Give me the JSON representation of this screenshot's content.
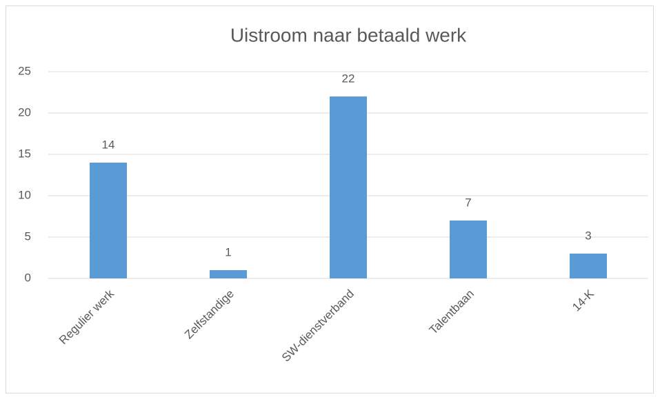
{
  "chart_data": {
    "type": "bar",
    "title": "Uistroom naar betaald werk",
    "categories": [
      "Regulier werk",
      "Zelfstandige",
      "SW-dienstverband",
      "Talentbaan",
      "14-K"
    ],
    "values": [
      14,
      1,
      22,
      7,
      3
    ],
    "color": "#5b9bd5",
    "ylim": [
      0,
      25
    ],
    "yticks": [
      0,
      5,
      10,
      15,
      20,
      25
    ],
    "grid": true
  }
}
